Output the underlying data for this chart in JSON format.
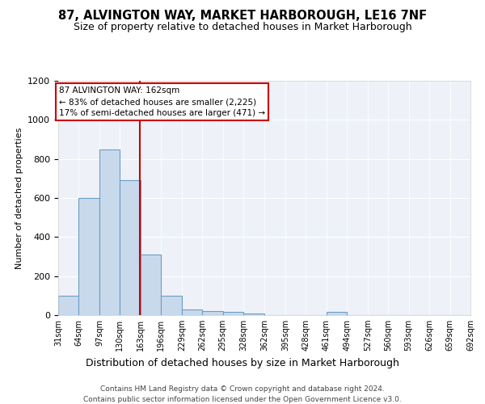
{
  "title": "87, ALVINGTON WAY, MARKET HARBOROUGH, LE16 7NF",
  "subtitle": "Size of property relative to detached houses in Market Harborough",
  "xlabel": "Distribution of detached houses by size in Market Harborough",
  "ylabel": "Number of detached properties",
  "bar_edges": [
    31,
    64,
    97,
    130,
    163,
    196,
    229,
    262,
    295,
    328,
    362,
    395,
    428,
    461,
    494,
    527,
    560,
    593,
    626,
    659,
    692
  ],
  "bar_heights": [
    100,
    600,
    850,
    690,
    310,
    100,
    30,
    20,
    15,
    10,
    0,
    0,
    0,
    15,
    0,
    0,
    0,
    0,
    0,
    0
  ],
  "bar_color": "#c9d9ec",
  "bar_edge_color": "#6a9ec5",
  "tick_labels": [
    "31sqm",
    "64sqm",
    "97sqm",
    "130sqm",
    "163sqm",
    "196sqm",
    "229sqm",
    "262sqm",
    "295sqm",
    "328sqm",
    "362sqm",
    "395sqm",
    "428sqm",
    "461sqm",
    "494sqm",
    "527sqm",
    "560sqm",
    "593sqm",
    "626sqm",
    "659sqm",
    "692sqm"
  ],
  "property_size": 162,
  "vline_color": "#cc0000",
  "ylim": [
    0,
    1200
  ],
  "yticks": [
    0,
    200,
    400,
    600,
    800,
    1000,
    1200
  ],
  "annotation_line1": "87 ALVINGTON WAY: 162sqm",
  "annotation_line2": "← 83% of detached houses are smaller (2,225)",
  "annotation_line3": "17% of semi-detached houses are larger (471) →",
  "bg_color": "#eef2f8",
  "footer_line1": "Contains HM Land Registry data © Crown copyright and database right 2024.",
  "footer_line2": "Contains public sector information licensed under the Open Government Licence v3.0."
}
